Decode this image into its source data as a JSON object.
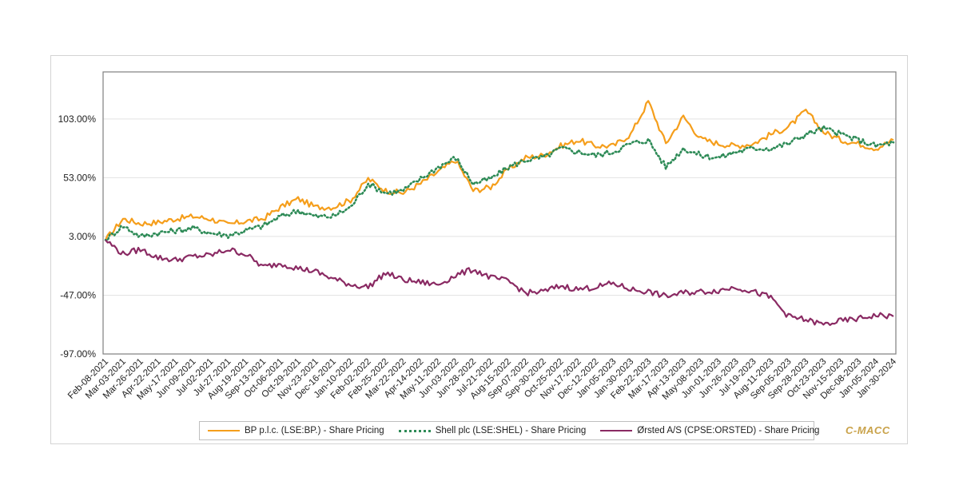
{
  "chart_data": {
    "type": "line",
    "brand": "C-MACC",
    "ylim": [
      -97,
      143
    ],
    "yticks": [
      "103.00%",
      "53.00%",
      "3.00%",
      "-47.00%",
      "-97.00%"
    ],
    "ytick_values": [
      103,
      53,
      3,
      -47,
      -97
    ],
    "categories": [
      "Feb-08-2021",
      "Mar-03-2021",
      "Mar-26-2021",
      "Apr-22-2021",
      "May-17-2021",
      "Jun-09-2021",
      "Jul-02-2021",
      "Jul-27-2021",
      "Aug-19-2021",
      "Sep-13-2021",
      "Oct-06-2021",
      "Oct-29-2021",
      "Nov-23-2021",
      "Dec-16-2021",
      "Jan-10-2022",
      "Feb-02-2022",
      "Feb-25-2022",
      "Mar-22-2022",
      "Apr-14-2022",
      "May-11-2022",
      "Jun-03-2022",
      "Jun-28-2022",
      "Jul-21-2022",
      "Aug-15-2022",
      "Sep-07-2022",
      "Sep-30-2022",
      "Oct-25-2022",
      "Nov-17-2022",
      "Dec-12-2022",
      "Jan-05-2023",
      "Jan-30-2023",
      "Feb-22-2023",
      "Mar-17-2023",
      "Apr-13-2023",
      "May-08-2023",
      "Jun-01-2023",
      "Jun-26-2023",
      "Jul-19-2023",
      "Aug-11-2023",
      "Sep-05-2023",
      "Sep-28-2023",
      "Oct-23-2023",
      "Nov-15-2023",
      "Dec-08-2023",
      "Jan-05-2024",
      "Jan-30-2024"
    ],
    "series": [
      {
        "name": "BP p.l.c. (LSE:BP.) - Share Pricing",
        "color": "#f59e1b",
        "style": "solid",
        "values": [
          0,
          18,
          14,
          15,
          18,
          20,
          18,
          13,
          16,
          18,
          28,
          35,
          28,
          28,
          34,
          52,
          42,
          40,
          48,
          58,
          68,
          42,
          45,
          60,
          70,
          72,
          80,
          85,
          80,
          80,
          90,
          118,
          82,
          105,
          86,
          82,
          80,
          82,
          90,
          96,
          110,
          92,
          85,
          82,
          78,
          85
        ]
      },
      {
        "name": "Shell plc (LSE:SHEL) - Share Pricing",
        "color": "#2e8b57",
        "style": "dotted",
        "values": [
          0,
          12,
          3,
          6,
          8,
          10,
          6,
          4,
          8,
          12,
          20,
          25,
          20,
          20,
          28,
          48,
          40,
          42,
          52,
          62,
          70,
          48,
          52,
          62,
          68,
          70,
          78,
          75,
          72,
          75,
          82,
          85,
          62,
          78,
          72,
          70,
          75,
          78,
          78,
          82,
          90,
          95,
          90,
          85,
          80,
          83
        ]
      },
      {
        "name": "Ørsted A/S (CPSE:ORSTED) - Share Pricing",
        "color": "#8a2a63",
        "style": "solid",
        "values": [
          0,
          -12,
          -8,
          -15,
          -17,
          -14,
          -13,
          -8,
          -12,
          -23,
          -20,
          -24,
          -27,
          -33,
          -38,
          -40,
          -28,
          -34,
          -36,
          -38,
          -30,
          -25,
          -32,
          -35,
          -45,
          -44,
          -39,
          -42,
          -40,
          -37,
          -42,
          -44,
          -48,
          -45,
          -44,
          -43,
          -40,
          -44,
          -49,
          -65,
          -68,
          -72,
          -69,
          -67,
          -64,
          -65
        ]
      }
    ]
  }
}
